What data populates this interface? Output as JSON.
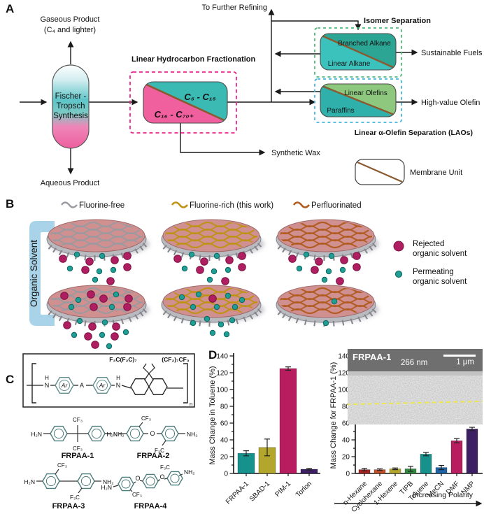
{
  "labels": {
    "a": "A",
    "b": "B",
    "c": "C",
    "d": "D"
  },
  "colors": {
    "teal_membrane": "#3bbab4",
    "pink_membrane": "#f0609f",
    "alkane_top": "#2da595",
    "alkane_bottom": "#3cc2bc",
    "olefin_top": "#8dc87e",
    "olefin_bottom": "#2fb0aa",
    "diagonal_brown": "#8a5a30",
    "frac_box": "#ec268b",
    "frac_title": "#e8304a",
    "isomer_box": "#52b878",
    "isomer_title": "#3cae63",
    "lao_box": "#45b5dd",
    "lao_title": "#2ba6d8",
    "rejected": "#b01e62",
    "permeating": "#1f9e96",
    "membrane_face": "#d09090",
    "membrane_rim": "#b9bac0",
    "fluorine_free": "#9a9aa0",
    "fluorine_rich": "#bf9214",
    "perfluorinated": "#b05a1e",
    "solvent_arrow": "#a9d3e8"
  },
  "panel_a": {
    "to_further_refining": "To Further Refining",
    "gaseous": [
      "Gaseous Product",
      "(C₄ and lighter)"
    ],
    "vessel": [
      "Fischer -",
      "Tropsch",
      "Synthesis"
    ],
    "aqueous": "Aqueous Product",
    "frac_title": "Linear Hydrocarbon Fractionation",
    "m1_top": "C₅ - C₁₅",
    "m1_bottom": "C₁₆ - C₇₀₊",
    "isomer_title": "Isomer Separation",
    "m2_top": "Branched Alkane",
    "m2_bottom": "Linear Alkane",
    "sustainable": "Sustainable Fuels",
    "m3_top": "Linear Olefins",
    "m3_bottom": "Paraffins",
    "high_value": "High-value Olefin",
    "lao_title": "Linear α-Olefin Separation (LAOs)",
    "synthetic_wax": "Synthetic Wax",
    "membrane_unit": "Membrane Unit"
  },
  "panel_b": {
    "legend": [
      {
        "label": "Fluorine-free"
      },
      {
        "label": "Fluorine-rich (this work)"
      },
      {
        "label": "Perfluorinated"
      }
    ],
    "organic_solvent": "Organic Solvent",
    "rejected": [
      "Rejected",
      "organic solvent"
    ],
    "permeating": [
      "Permeating",
      "organic solvent"
    ]
  },
  "panel_c": {
    "box": {
      "chain_left": "F₃C(F₂C)₇",
      "chain_right": "(CF₂)₇CF₃",
      "ar": "Ar",
      "link": "A",
      "n_atom": "N",
      "h_atom": "H",
      "repeat": "n"
    },
    "structures": [
      {
        "name": "FRPAA-1",
        "left": "H₂N",
        "right": "NH₂",
        "sub_top": "CF₃",
        "sub_bottom": "CF₃"
      },
      {
        "name": "FRPAA-2",
        "left": "H₂N",
        "right": "NH₂",
        "sub_top": "CF₃",
        "sub_bottom": "F₃C",
        "o": "O"
      },
      {
        "name": "FRPAA-3",
        "left": "H₂N",
        "right": "NH₂",
        "sub_top": "CF₃",
        "sub_bottom": "F₃C"
      },
      {
        "name": "FRPAA-4",
        "left": "H₂N",
        "right": "NH₂",
        "sub_top": "F₃C",
        "sub_bottom": "CF₃",
        "o": "O",
        "o2": "O"
      }
    ]
  },
  "chart_data": [
    {
      "type": "bar",
      "ylabel": "Mass Change in Toluene (%)",
      "ylim": [
        0,
        140
      ],
      "ytick_step": 20,
      "ytick_minor": 10,
      "categories": [
        "FRPAA-1",
        "SBAD-1",
        "PIM-1",
        "Torlon"
      ],
      "values": [
        24,
        31,
        125,
        5
      ],
      "errors": [
        3,
        10,
        2,
        1
      ],
      "colors": [
        "#17918b",
        "#b2a62c",
        "#b81e5f",
        "#3c2063"
      ],
      "grid": false,
      "legend_position": "none"
    },
    {
      "type": "bar",
      "ylabel": "Mass Change for FRPAA-1 (%)",
      "ylim": [
        0,
        140
      ],
      "ytick_step": 20,
      "ytick_minor": 10,
      "categories": [
        "n-Hexane",
        "Cyclohexane",
        "1-Hexene",
        "TIPB",
        "Toluene",
        "MeCN",
        "DMF",
        "NMP"
      ],
      "values": [
        4.5,
        4.5,
        5.5,
        5.5,
        23,
        7,
        39,
        53
      ],
      "errors": [
        1.5,
        1,
        1,
        3,
        2,
        2.5,
        2.5,
        2
      ],
      "colors": [
        "#a8231f",
        "#c1502a",
        "#b2a62c",
        "#2f8c3f",
        "#17918b",
        "#1e62a8",
        "#b81e5f",
        "#3c2063"
      ],
      "xannotation": "Increasing Polarity",
      "inset": {
        "label": "FRPAA-1",
        "thickness": "266 nm",
        "scalebar": "1 μm"
      },
      "grid": false,
      "legend_position": "none"
    }
  ]
}
